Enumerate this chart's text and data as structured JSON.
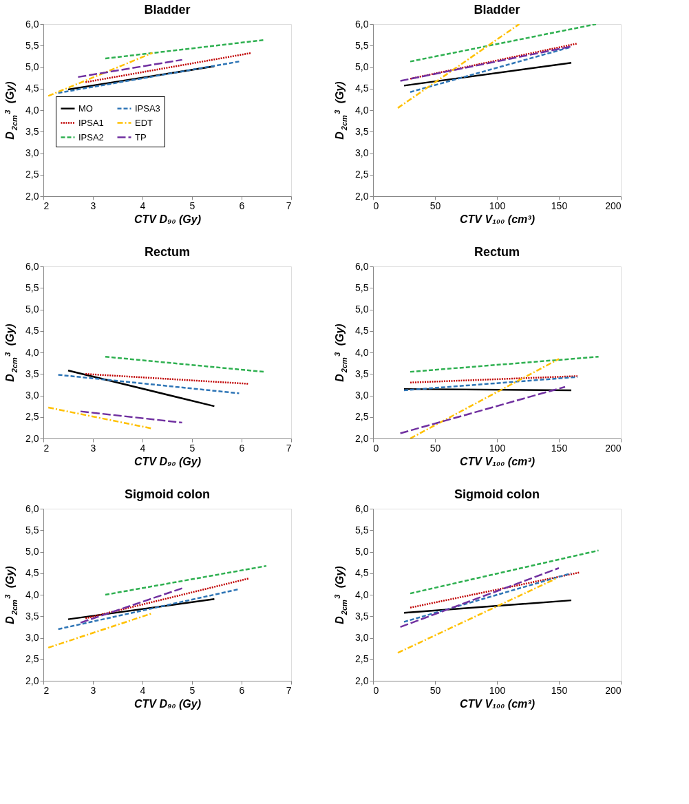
{
  "chart_data": [
    {
      "type": "line",
      "title": "Bladder",
      "xlabel": "CTV D₉₀ (Gy)",
      "ylabel": "D$_{2cm}$$^{3}$ (Gy)",
      "xlim": [
        2,
        7
      ],
      "xticks": [
        2,
        3,
        4,
        5,
        6,
        7
      ],
      "ylim": [
        2,
        6
      ],
      "yticks": [
        {
          "value": 2,
          "label": "2,0"
        },
        {
          "value": 2.5,
          "label": "2,5"
        },
        {
          "value": 3,
          "label": "3,0"
        },
        {
          "value": 3.5,
          "label": "3,5"
        },
        {
          "value": 4,
          "label": "4,0"
        },
        {
          "value": 4.5,
          "label": "4,5"
        },
        {
          "value": 5,
          "label": "5,0"
        },
        {
          "value": 5.5,
          "label": "5,5"
        },
        {
          "value": 6,
          "label": "6,0"
        }
      ],
      "legend": "bottom",
      "series": [
        {
          "name": "MO",
          "color": "#000000",
          "line_style": "solid",
          "x": [
            2.5,
            5.45
          ],
          "values": [
            4.48,
            5.02
          ]
        },
        {
          "name": "IPSA1",
          "color": "#c00000",
          "line_style": "dotted",
          "x": [
            2.85,
            6.2
          ],
          "values": [
            4.65,
            5.33
          ]
        },
        {
          "name": "IPSA2",
          "color": "#2eb050",
          "line_style": "dashed",
          "x": [
            3.25,
            6.45
          ],
          "values": [
            5.2,
            5.63
          ]
        },
        {
          "name": "IPSA3",
          "color": "#2e75b6",
          "line_style": "dashed",
          "x": [
            2.3,
            5.95
          ],
          "values": [
            4.4,
            5.13
          ]
        },
        {
          "name": "EDT",
          "color": "#ffc000",
          "line_style": "dashdot",
          "x": [
            2.1,
            4.2
          ],
          "values": [
            4.33,
            5.33
          ]
        },
        {
          "name": "TP",
          "color": "#7030a0",
          "line_style": "longdash",
          "x": [
            2.7,
            4.8
          ],
          "values": [
            4.77,
            5.17
          ]
        }
      ]
    },
    {
      "type": "line",
      "title": "Bladder",
      "xlabel": "CTV V₁₀₀ (cm³)",
      "ylabel": "D$_{2cm}$$^{3}$ (Gy)",
      "xlim": [
        0,
        200
      ],
      "xticks": [
        0,
        50,
        100,
        150,
        200
      ],
      "ylim": [
        2,
        6
      ],
      "yticks": [
        {
          "value": 2,
          "label": "2,0"
        },
        {
          "value": 2.5,
          "label": "2,5"
        },
        {
          "value": 3,
          "label": "3,0"
        },
        {
          "value": 3.5,
          "label": "3,5"
        },
        {
          "value": 4,
          "label": "4,0"
        },
        {
          "value": 4.5,
          "label": "4,5"
        },
        {
          "value": 5,
          "label": "5,0"
        },
        {
          "value": 5.5,
          "label": "5,5"
        },
        {
          "value": 6,
          "label": "6,0"
        }
      ],
      "series": [
        {
          "color": "#000000",
          "line_style": "solid",
          "x": [
            25,
            160
          ],
          "values": [
            4.57,
            5.1
          ]
        },
        {
          "color": "#c00000",
          "line_style": "dotted",
          "x": [
            30,
            165
          ],
          "values": [
            4.73,
            5.55
          ]
        },
        {
          "color": "#2eb050",
          "line_style": "dashed",
          "x": [
            30,
            180
          ],
          "values": [
            5.13,
            6.0
          ]
        },
        {
          "color": "#2e75b6",
          "line_style": "dashed",
          "x": [
            30,
            160
          ],
          "values": [
            4.42,
            5.47
          ]
        },
        {
          "color": "#ffc000",
          "line_style": "dashdot",
          "x": [
            20,
            118
          ],
          "values": [
            4.05,
            6.0
          ]
        },
        {
          "color": "#7030a0",
          "line_style": "longdash",
          "x": [
            22,
            160
          ],
          "values": [
            4.68,
            5.48
          ]
        }
      ]
    },
    {
      "type": "line",
      "title": "Rectum",
      "xlabel": "CTV D₉₀ (Gy)",
      "ylabel": "D$_{2cm}$$^{3}$ (Gy)",
      "xlim": [
        2,
        7
      ],
      "xticks": [
        2,
        3,
        4,
        5,
        6,
        7
      ],
      "ylim": [
        2,
        6
      ],
      "yticks": [
        {
          "value": 2,
          "label": "2,0"
        },
        {
          "value": 2.5,
          "label": "2,5"
        },
        {
          "value": 3,
          "label": "3,0"
        },
        {
          "value": 3.5,
          "label": "3,5"
        },
        {
          "value": 4,
          "label": "4,0"
        },
        {
          "value": 4.5,
          "label": "4,5"
        },
        {
          "value": 5,
          "label": "5,0"
        },
        {
          "value": 5.5,
          "label": "5,5"
        },
        {
          "value": 6,
          "label": "6,0"
        }
      ],
      "series": [
        {
          "color": "#000000",
          "line_style": "solid",
          "x": [
            2.5,
            5.45
          ],
          "values": [
            3.58,
            2.75
          ]
        },
        {
          "color": "#c00000",
          "line_style": "dotted",
          "x": [
            2.85,
            6.15
          ],
          "values": [
            3.5,
            3.27
          ]
        },
        {
          "color": "#2eb050",
          "line_style": "dashed",
          "x": [
            3.25,
            6.45
          ],
          "values": [
            3.9,
            3.55
          ]
        },
        {
          "color": "#2e75b6",
          "line_style": "dashed",
          "x": [
            2.3,
            5.95
          ],
          "values": [
            3.48,
            3.05
          ]
        },
        {
          "color": "#ffc000",
          "line_style": "dashdot",
          "x": [
            2.1,
            4.2
          ],
          "values": [
            2.72,
            2.23
          ]
        },
        {
          "color": "#7030a0",
          "line_style": "longdash",
          "x": [
            2.75,
            4.8
          ],
          "values": [
            2.63,
            2.37
          ]
        }
      ]
    },
    {
      "type": "line",
      "title": "Rectum",
      "xlabel": "CTV V₁₀₀ (cm³)",
      "ylabel": "D$_{2cm}$$^{3}$ (Gy)",
      "xlim": [
        0,
        200
      ],
      "xticks": [
        0,
        50,
        100,
        150,
        200
      ],
      "ylim": [
        2,
        6
      ],
      "yticks": [
        {
          "value": 2,
          "label": "2,0"
        },
        {
          "value": 2.5,
          "label": "2,5"
        },
        {
          "value": 3,
          "label": "3,0"
        },
        {
          "value": 3.5,
          "label": "3,5"
        },
        {
          "value": 4,
          "label": "4,0"
        },
        {
          "value": 4.5,
          "label": "4,5"
        },
        {
          "value": 5,
          "label": "5,0"
        },
        {
          "value": 5.5,
          "label": "5,5"
        },
        {
          "value": 6,
          "label": "6,0"
        }
      ],
      "series": [
        {
          "color": "#000000",
          "line_style": "solid",
          "x": [
            25,
            160
          ],
          "values": [
            3.15,
            3.12
          ]
        },
        {
          "color": "#c00000",
          "line_style": "dotted",
          "x": [
            30,
            165
          ],
          "values": [
            3.3,
            3.45
          ]
        },
        {
          "color": "#2eb050",
          "line_style": "dashed",
          "x": [
            30,
            182
          ],
          "values": [
            3.55,
            3.9
          ]
        },
        {
          "color": "#2e75b6",
          "line_style": "dashed",
          "x": [
            25,
            165
          ],
          "values": [
            3.12,
            3.43
          ]
        },
        {
          "color": "#ffc000",
          "line_style": "dashdot",
          "x": [
            30,
            150
          ],
          "values": [
            2.0,
            3.85
          ]
        },
        {
          "color": "#7030a0",
          "line_style": "longdash",
          "x": [
            22,
            155
          ],
          "values": [
            2.12,
            3.2
          ]
        }
      ]
    },
    {
      "type": "line",
      "title": "Sigmoid colon",
      "xlabel": "CTV D₉₀ (Gy)",
      "ylabel": "D$_{2cm}$$^{3}$ (Gy)",
      "xlim": [
        2,
        7
      ],
      "xticks": [
        2,
        3,
        4,
        5,
        6,
        7
      ],
      "ylim": [
        2,
        6
      ],
      "yticks": [
        {
          "value": 2,
          "label": "2,0"
        },
        {
          "value": 2.5,
          "label": "2,5"
        },
        {
          "value": 3,
          "label": "3,0"
        },
        {
          "value": 3.5,
          "label": "3,5"
        },
        {
          "value": 4,
          "label": "4,0"
        },
        {
          "value": 4.5,
          "label": "4,5"
        },
        {
          "value": 5,
          "label": "5,0"
        },
        {
          "value": 5.5,
          "label": "5,5"
        },
        {
          "value": 6,
          "label": "6,0"
        }
      ],
      "series": [
        {
          "color": "#000000",
          "line_style": "solid",
          "x": [
            2.5,
            5.45
          ],
          "values": [
            3.43,
            3.9
          ]
        },
        {
          "color": "#c00000",
          "line_style": "dotted",
          "x": [
            2.85,
            6.15
          ],
          "values": [
            3.45,
            4.38
          ]
        },
        {
          "color": "#2eb050",
          "line_style": "dashed",
          "x": [
            3.25,
            6.5
          ],
          "values": [
            4.0,
            4.67
          ]
        },
        {
          "color": "#2e75b6",
          "line_style": "dashed",
          "x": [
            2.3,
            5.95
          ],
          "values": [
            3.2,
            4.13
          ]
        },
        {
          "color": "#ffc000",
          "line_style": "dashdot",
          "x": [
            2.1,
            4.2
          ],
          "values": [
            2.77,
            3.57
          ]
        },
        {
          "color": "#7030a0",
          "line_style": "longdash",
          "x": [
            2.75,
            4.8
          ],
          "values": [
            3.35,
            4.15
          ]
        }
      ]
    },
    {
      "type": "line",
      "title": "Sigmoid colon",
      "xlabel": "CTV V₁₀₀ (cm³)",
      "ylabel": "D$_{2cm}$$^{3}$ (Gy)",
      "xlim": [
        0,
        200
      ],
      "xticks": [
        0,
        50,
        100,
        150,
        200
      ],
      "ylim": [
        2,
        6
      ],
      "yticks": [
        {
          "value": 2,
          "label": "2,0"
        },
        {
          "value": 2.5,
          "label": "2,5"
        },
        {
          "value": 3,
          "label": "3,0"
        },
        {
          "value": 3.5,
          "label": "3,5"
        },
        {
          "value": 4,
          "label": "4,0"
        },
        {
          "value": 4.5,
          "label": "4,5"
        },
        {
          "value": 5,
          "label": "5,0"
        },
        {
          "value": 5.5,
          "label": "5,5"
        },
        {
          "value": 6,
          "label": "6,0"
        }
      ],
      "series": [
        {
          "color": "#000000",
          "line_style": "solid",
          "x": [
            25,
            160
          ],
          "values": [
            3.58,
            3.87
          ]
        },
        {
          "color": "#c00000",
          "line_style": "dotted",
          "x": [
            30,
            167
          ],
          "values": [
            3.7,
            4.52
          ]
        },
        {
          "color": "#2eb050",
          "line_style": "dashed",
          "x": [
            30,
            182
          ],
          "values": [
            4.03,
            5.03
          ]
        },
        {
          "color": "#2e75b6",
          "line_style": "dashed",
          "x": [
            25,
            160
          ],
          "values": [
            3.37,
            4.5
          ]
        },
        {
          "color": "#ffc000",
          "line_style": "dashdot",
          "x": [
            20,
            148
          ],
          "values": [
            2.65,
            4.38
          ]
        },
        {
          "color": "#7030a0",
          "line_style": "longdash",
          "x": [
            22,
            150
          ],
          "values": [
            3.25,
            4.62
          ]
        }
      ]
    }
  ]
}
